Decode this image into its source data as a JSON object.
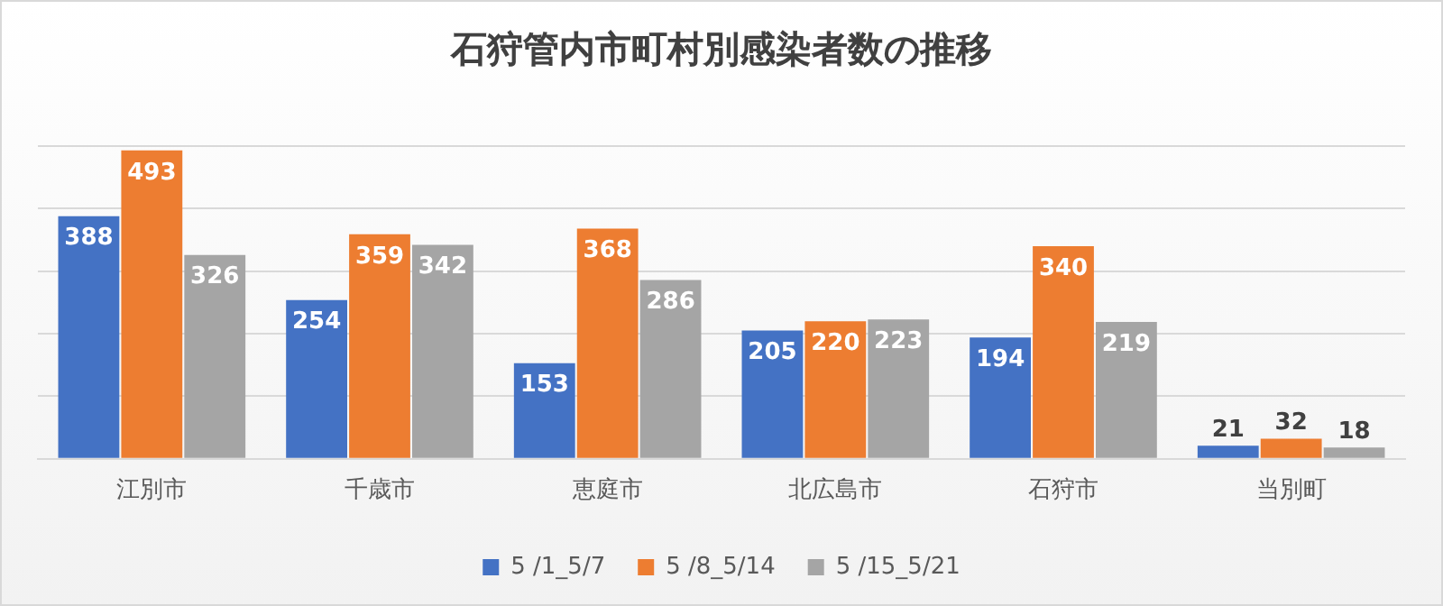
{
  "chart_data": {
    "type": "bar",
    "title": "石狩管内市町村別感染者数の推移",
    "categories": [
      "江別市",
      "千歳市",
      "恵庭市",
      "北広島市",
      "石狩市",
      "当別町"
    ],
    "series": [
      {
        "name": "5 /1_5/7",
        "color": "#4472c4",
        "values": [
          388,
          254,
          153,
          205,
          194,
          21
        ]
      },
      {
        "name": "5 /8_5/14",
        "color": "#ed7d31",
        "values": [
          493,
          359,
          368,
          220,
          340,
          32
        ]
      },
      {
        "name": "5 /15_5/21",
        "color": "#a5a5a5",
        "values": [
          326,
          342,
          286,
          223,
          219,
          18
        ]
      }
    ],
    "ylim": [
      0,
      500
    ],
    "yticks": [
      {
        "value": 0,
        "label": null
      },
      {
        "value": 100,
        "label": null
      },
      {
        "value": 200,
        "label": null
      },
      {
        "value": 300,
        "label": null
      },
      {
        "value": 400,
        "label": null
      },
      {
        "value": 500,
        "label": null
      }
    ],
    "grid": "y",
    "tick_labels": "x",
    "data_labels": true,
    "legend": "bottom"
  }
}
